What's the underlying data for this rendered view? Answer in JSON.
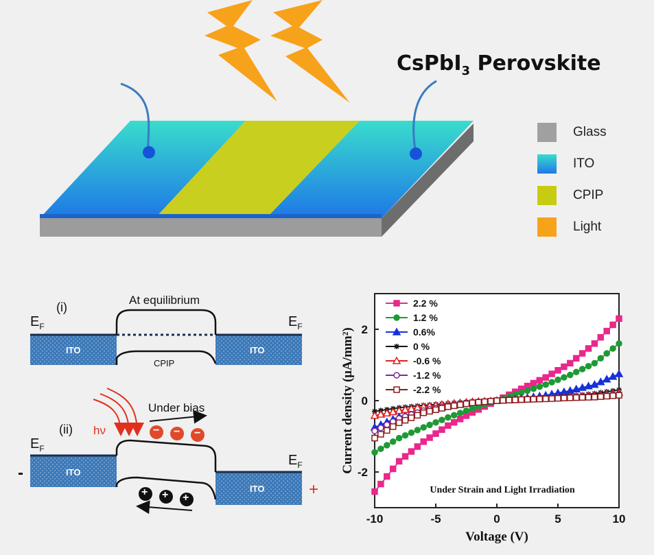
{
  "device": {
    "title_main": "CsPbI",
    "title_sub": "3",
    "title_tail": " Perovskite",
    "legend": [
      {
        "label": "Glass",
        "color": "#a0a0a0"
      },
      {
        "label": "ITO",
        "color": "#1f8fe0"
      },
      {
        "label": "CPIP",
        "color": "#c8cc10"
      },
      {
        "label": "Light",
        "color": "#f7a21b"
      }
    ]
  },
  "band_i": {
    "panel_label": "(i)",
    "heading": "At equilibrium",
    "ef_main": "E",
    "ef_sub": "F",
    "left_label": "ITO",
    "right_label": "ITO",
    "middle_label": "CPIP"
  },
  "band_ii": {
    "panel_label": "(ii)",
    "bias_label": "Under bias",
    "photon_label": "hν",
    "ef_main": "E",
    "ef_sub": "F",
    "left_label": "ITO",
    "right_label": "ITO",
    "minus_terminal": "-",
    "plus_terminal": "+",
    "electron_symbol": "−",
    "hole_symbol": "+"
  },
  "chart_data": {
    "type": "line",
    "xlabel": "Voltage (V)",
    "ylabel": "Current density (μA/mm²)",
    "xlim": [
      -10,
      10
    ],
    "ylim": [
      -3,
      3
    ],
    "xticks": [
      "-10",
      "-5",
      "0",
      "5",
      "10"
    ],
    "yticks": [
      "-2",
      "0",
      "2"
    ],
    "annotation": "Under Strain and Light Irradiation",
    "legend_position": "top-left",
    "series": [
      {
        "name": "2.2 %",
        "color": "#e8288c",
        "marker": "square",
        "x": [
          -10,
          -8,
          -6,
          -4,
          -2,
          0,
          2,
          4,
          6,
          8,
          10
        ],
        "y": [
          -2.55,
          -1.7,
          -1.15,
          -0.7,
          -0.33,
          0,
          0.33,
          0.65,
          1.05,
          1.6,
          2.3
        ]
      },
      {
        "name": "1.2 %",
        "color": "#1e9a35",
        "marker": "circle",
        "x": [
          -10,
          -8,
          -6,
          -4,
          -2,
          0,
          2,
          4,
          6,
          8,
          10
        ],
        "y": [
          -1.45,
          -1.05,
          -0.75,
          -0.47,
          -0.22,
          0,
          0.22,
          0.45,
          0.72,
          1.05,
          1.6
        ]
      },
      {
        "name": "0.6%",
        "color": "#1630d8",
        "marker": "triangle",
        "x": [
          -10,
          -8,
          -6,
          -4,
          -2,
          0,
          2,
          4,
          6,
          8,
          10
        ],
        "y": [
          -0.75,
          -0.45,
          -0.28,
          -0.15,
          -0.06,
          0,
          0.06,
          0.15,
          0.28,
          0.45,
          0.75
        ]
      },
      {
        "name": "0 %",
        "color": "#111111",
        "marker": "star",
        "x": [
          -10,
          -8,
          -6,
          -4,
          -2,
          0,
          2,
          4,
          6,
          8,
          10
        ],
        "y": [
          -0.3,
          -0.2,
          -0.13,
          -0.08,
          -0.03,
          0,
          0.03,
          0.08,
          0.13,
          0.2,
          0.3
        ]
      },
      {
        "name": "-0.6 %",
        "color": "#e02020",
        "marker": "open-triangle",
        "x": [
          -10,
          -8,
          -6,
          -4,
          -2,
          0,
          2,
          4,
          6,
          8,
          10
        ],
        "y": [
          -0.42,
          -0.28,
          -0.17,
          -0.09,
          -0.03,
          0,
          0.03,
          0.06,
          0.1,
          0.14,
          0.22
        ]
      },
      {
        "name": "-1.2 %",
        "color": "#7a2a98",
        "marker": "open-circle",
        "x": [
          -10,
          -8,
          -6,
          -4,
          -2,
          0,
          2,
          4,
          6,
          8,
          10
        ],
        "y": [
          -0.85,
          -0.5,
          -0.28,
          -0.14,
          -0.05,
          0,
          0.03,
          0.06,
          0.09,
          0.12,
          0.18
        ]
      },
      {
        "name": "-2.2 %",
        "color": "#8b1a1a",
        "marker": "open-square",
        "x": [
          -10,
          -8,
          -6,
          -4,
          -2,
          0,
          2,
          4,
          6,
          8,
          10
        ],
        "y": [
          -1.05,
          -0.62,
          -0.34,
          -0.17,
          -0.06,
          0,
          0.03,
          0.05,
          0.08,
          0.1,
          0.15
        ]
      }
    ]
  }
}
